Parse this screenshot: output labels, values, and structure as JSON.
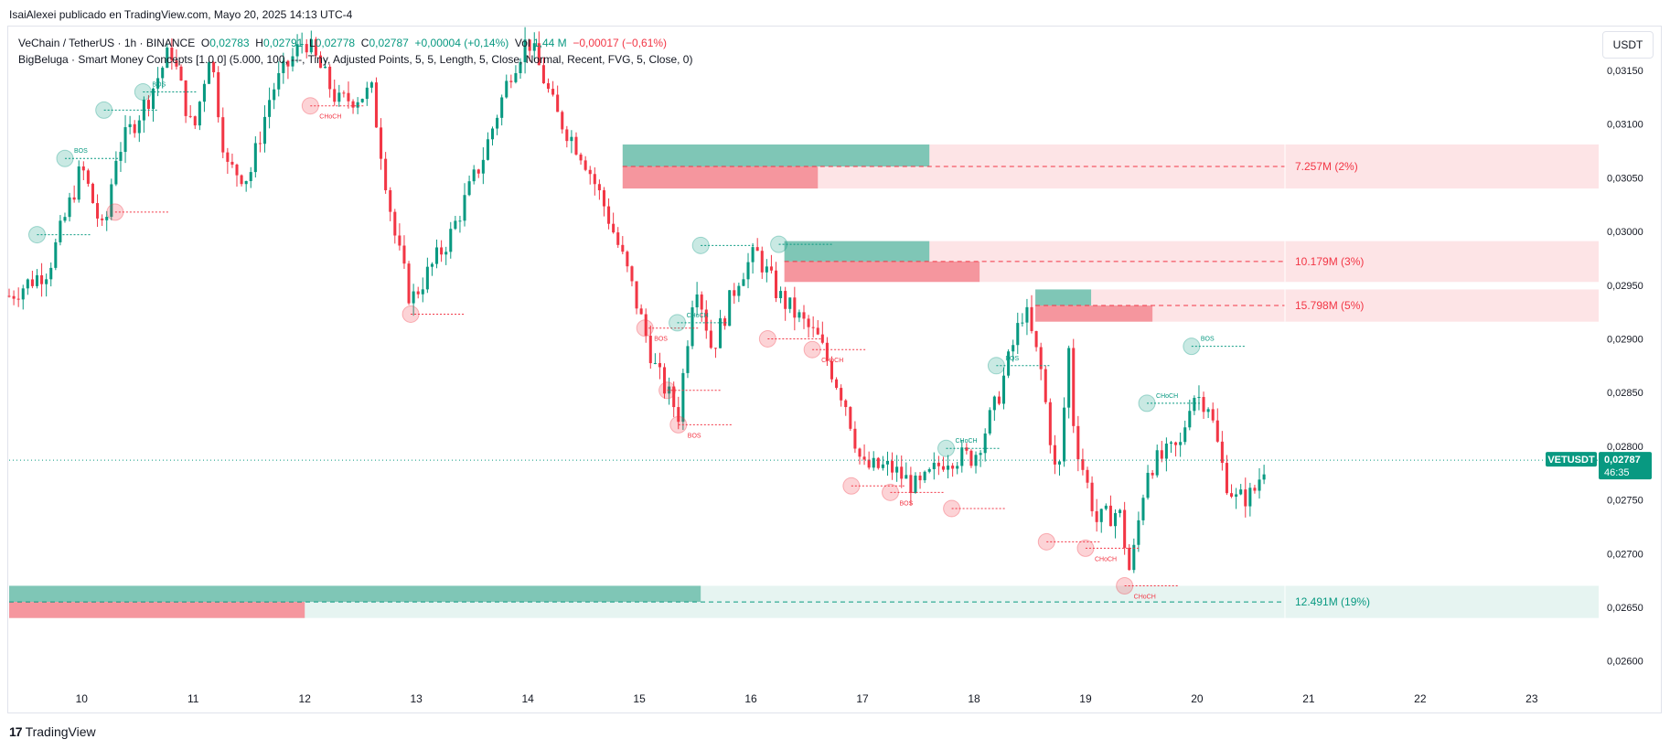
{
  "header": {
    "credit": "IsaiAlexei publicado en TradingView.com, Mayo 20, 2025 14:13 UTC-4"
  },
  "legend": {
    "symbol": "VeChain / TetherUS · 1h · BINANCE",
    "o_label": "O",
    "o_value": "0,02783",
    "h_label": "H",
    "h_value": "0,02791",
    "l_label": "L",
    "l_value": "0,02778",
    "c_label": "C",
    "c_value": "0,02787",
    "change": "+0,00004 (+0,14%)",
    "vol_label": "Vol",
    "vol_value": "1,44 M",
    "vol_change": "−0,00017 (−0,61%)",
    "indicator": "BigBeluga · Smart Money Concepts [1.0.0] (5.000, 100, ---, Tiny, Adjusted Points, 5, 5, Length, 5, Close, Normal, Recent, FVG, 5, Close, 0)"
  },
  "currency_button": "USDT",
  "footer": {
    "brand": "TradingView",
    "brand_mark": "17"
  },
  "colors": {
    "up": "#089981",
    "down": "#f23645",
    "bull_zone": "#7fc6b6",
    "bear_zone": "#f5969e",
    "bull_zone_light": "#e6f4f1",
    "bear_zone_light": "#fde4e6"
  },
  "chart_data": {
    "type": "candlestick",
    "price_label": "VETUSDT",
    "last_price": "0,02787",
    "countdown": "46:35",
    "ylim": [
      0.02575,
      0.0319
    ],
    "y_ticks": [
      "0,03150",
      "0,03100",
      "0,03050",
      "0,03000",
      "0,02950",
      "0,02900",
      "0,02850",
      "0,02800",
      "0,02750",
      "0,02700",
      "0,02650",
      "0,02600"
    ],
    "y_tick_values": [
      0.0315,
      0.031,
      0.0305,
      0.03,
      0.0295,
      0.029,
      0.0285,
      0.028,
      0.0275,
      0.027,
      0.0265,
      0.026
    ],
    "x_ticks": [
      "10",
      "11",
      "12",
      "13",
      "14",
      "15",
      "16",
      "17",
      "18",
      "19",
      "20",
      "21",
      "22",
      "23"
    ],
    "x_tick_days": [
      10,
      11,
      12,
      13,
      14,
      15,
      16,
      17,
      18,
      19,
      20,
      21,
      22,
      23
    ],
    "x_start_day": 9.35,
    "x_end_day": 23.6,
    "anchors": [
      [
        9.35,
        0.0294
      ],
      [
        9.7,
        0.02965
      ],
      [
        10.0,
        0.0306
      ],
      [
        10.2,
        0.02995
      ],
      [
        10.3,
        0.0307
      ],
      [
        10.6,
        0.03125
      ],
      [
        10.8,
        0.0317
      ],
      [
        11.0,
        0.0309
      ],
      [
        11.15,
        0.0317
      ],
      [
        11.3,
        0.0306
      ],
      [
        11.5,
        0.0305
      ],
      [
        11.7,
        0.0313
      ],
      [
        12.0,
        0.0318
      ],
      [
        12.3,
        0.0312
      ],
      [
        12.6,
        0.0313
      ],
      [
        12.8,
        0.03
      ],
      [
        12.95,
        0.02935
      ],
      [
        13.3,
        0.02995
      ],
      [
        13.6,
        0.0307
      ],
      [
        13.85,
        0.0315
      ],
      [
        14.0,
        0.0318
      ],
      [
        14.15,
        0.0314
      ],
      [
        14.25,
        0.0311
      ],
      [
        14.5,
        0.0307
      ],
      [
        14.7,
        0.0302
      ],
      [
        14.9,
        0.0296
      ],
      [
        15.15,
        0.0287
      ],
      [
        15.35,
        0.0283
      ],
      [
        15.5,
        0.0296
      ],
      [
        15.65,
        0.0289
      ],
      [
        15.9,
        0.0296
      ],
      [
        16.05,
        0.0298
      ],
      [
        16.25,
        0.0294
      ],
      [
        16.6,
        0.029
      ],
      [
        16.85,
        0.0284
      ],
      [
        17.0,
        0.0278
      ],
      [
        17.25,
        0.0278
      ],
      [
        17.5,
        0.0276
      ],
      [
        17.75,
        0.0279
      ],
      [
        18.0,
        0.0279
      ],
      [
        18.2,
        0.0284
      ],
      [
        18.45,
        0.0293
      ],
      [
        18.6,
        0.0287
      ],
      [
        18.75,
        0.0276
      ],
      [
        18.85,
        0.0289
      ],
      [
        18.9,
        0.0281
      ],
      [
        19.1,
        0.0273
      ],
      [
        19.3,
        0.0274
      ],
      [
        19.4,
        0.0268
      ],
      [
        19.55,
        0.0278
      ],
      [
        19.85,
        0.028
      ],
      [
        19.95,
        0.0285
      ],
      [
        20.1,
        0.0284
      ],
      [
        20.25,
        0.0277
      ],
      [
        20.35,
        0.0275
      ],
      [
        20.5,
        0.02755
      ],
      [
        20.62,
        0.02787
      ]
    ],
    "markers": [
      {
        "day": 9.6,
        "price": 0.02997,
        "kind": "bull",
        "label": ""
      },
      {
        "day": 9.85,
        "price": 0.03068,
        "kind": "bull",
        "label": "BOS"
      },
      {
        "day": 10.2,
        "price": 0.03113,
        "kind": "bull",
        "label": ""
      },
      {
        "day": 10.55,
        "price": 0.0313,
        "kind": "bull",
        "label": "BOS"
      },
      {
        "day": 10.3,
        "price": 0.03018,
        "kind": "bear",
        "label": ""
      },
      {
        "day": 12.05,
        "price": 0.03117,
        "kind": "bear",
        "label": "CHoCH"
      },
      {
        "day": 12.95,
        "price": 0.02923,
        "kind": "bear",
        "label": ""
      },
      {
        "day": 15.05,
        "price": 0.0291,
        "kind": "bear",
        "label": "BOS"
      },
      {
        "day": 15.25,
        "price": 0.02852,
        "kind": "bear",
        "label": ""
      },
      {
        "day": 15.35,
        "price": 0.0282,
        "kind": "bear",
        "label": "BOS"
      },
      {
        "day": 15.34,
        "price": 0.02915,
        "kind": "bull",
        "label": "CHoCH"
      },
      {
        "day": 15.55,
        "price": 0.02987,
        "kind": "bull",
        "label": ""
      },
      {
        "day": 16.25,
        "price": 0.02988,
        "kind": "bull",
        "label": ""
      },
      {
        "day": 16.15,
        "price": 0.029,
        "kind": "bear",
        "label": ""
      },
      {
        "day": 16.55,
        "price": 0.0289,
        "kind": "bear",
        "label": "CHoCH"
      },
      {
        "day": 16.9,
        "price": 0.02763,
        "kind": "bear",
        "label": ""
      },
      {
        "day": 17.25,
        "price": 0.02757,
        "kind": "bear",
        "label": "BOS"
      },
      {
        "day": 17.75,
        "price": 0.02798,
        "kind": "bull",
        "label": "CHoCH"
      },
      {
        "day": 17.8,
        "price": 0.02742,
        "kind": "bear",
        "label": ""
      },
      {
        "day": 18.2,
        "price": 0.02875,
        "kind": "bull",
        "label": "BOS"
      },
      {
        "day": 18.65,
        "price": 0.02711,
        "kind": "bear",
        "label": ""
      },
      {
        "day": 19.0,
        "price": 0.02705,
        "kind": "bear",
        "label": "CHoCH"
      },
      {
        "day": 19.55,
        "price": 0.0284,
        "kind": "bull",
        "label": "CHoCH"
      },
      {
        "day": 19.35,
        "price": 0.0267,
        "kind": "bear",
        "label": "CHoCH"
      },
      {
        "day": 19.95,
        "price": 0.02893,
        "kind": "bull",
        "label": "BOS"
      }
    ],
    "order_blocks": [
      {
        "type": "bear",
        "top": 0.03081,
        "bottom": 0.0304,
        "start": 14.85,
        "bull_end": 17.6,
        "bear_end": 16.6,
        "label": "7.257M (2%)"
      },
      {
        "type": "bear",
        "top": 0.02991,
        "bottom": 0.02953,
        "start": 16.3,
        "bull_end": 17.6,
        "bear_end": 18.05,
        "label": "10.179M (3%)"
      },
      {
        "type": "bear",
        "top": 0.02946,
        "bottom": 0.02916,
        "start": 18.55,
        "bull_end": 19.05,
        "bear_end": 19.6,
        "label": "15.798M (5%)"
      },
      {
        "type": "bull",
        "top": 0.0267,
        "bottom": 0.0264,
        "start": 9.35,
        "bull_end": 15.55,
        "bear_end": 12.0,
        "label": "12.491M (19%)"
      }
    ]
  }
}
